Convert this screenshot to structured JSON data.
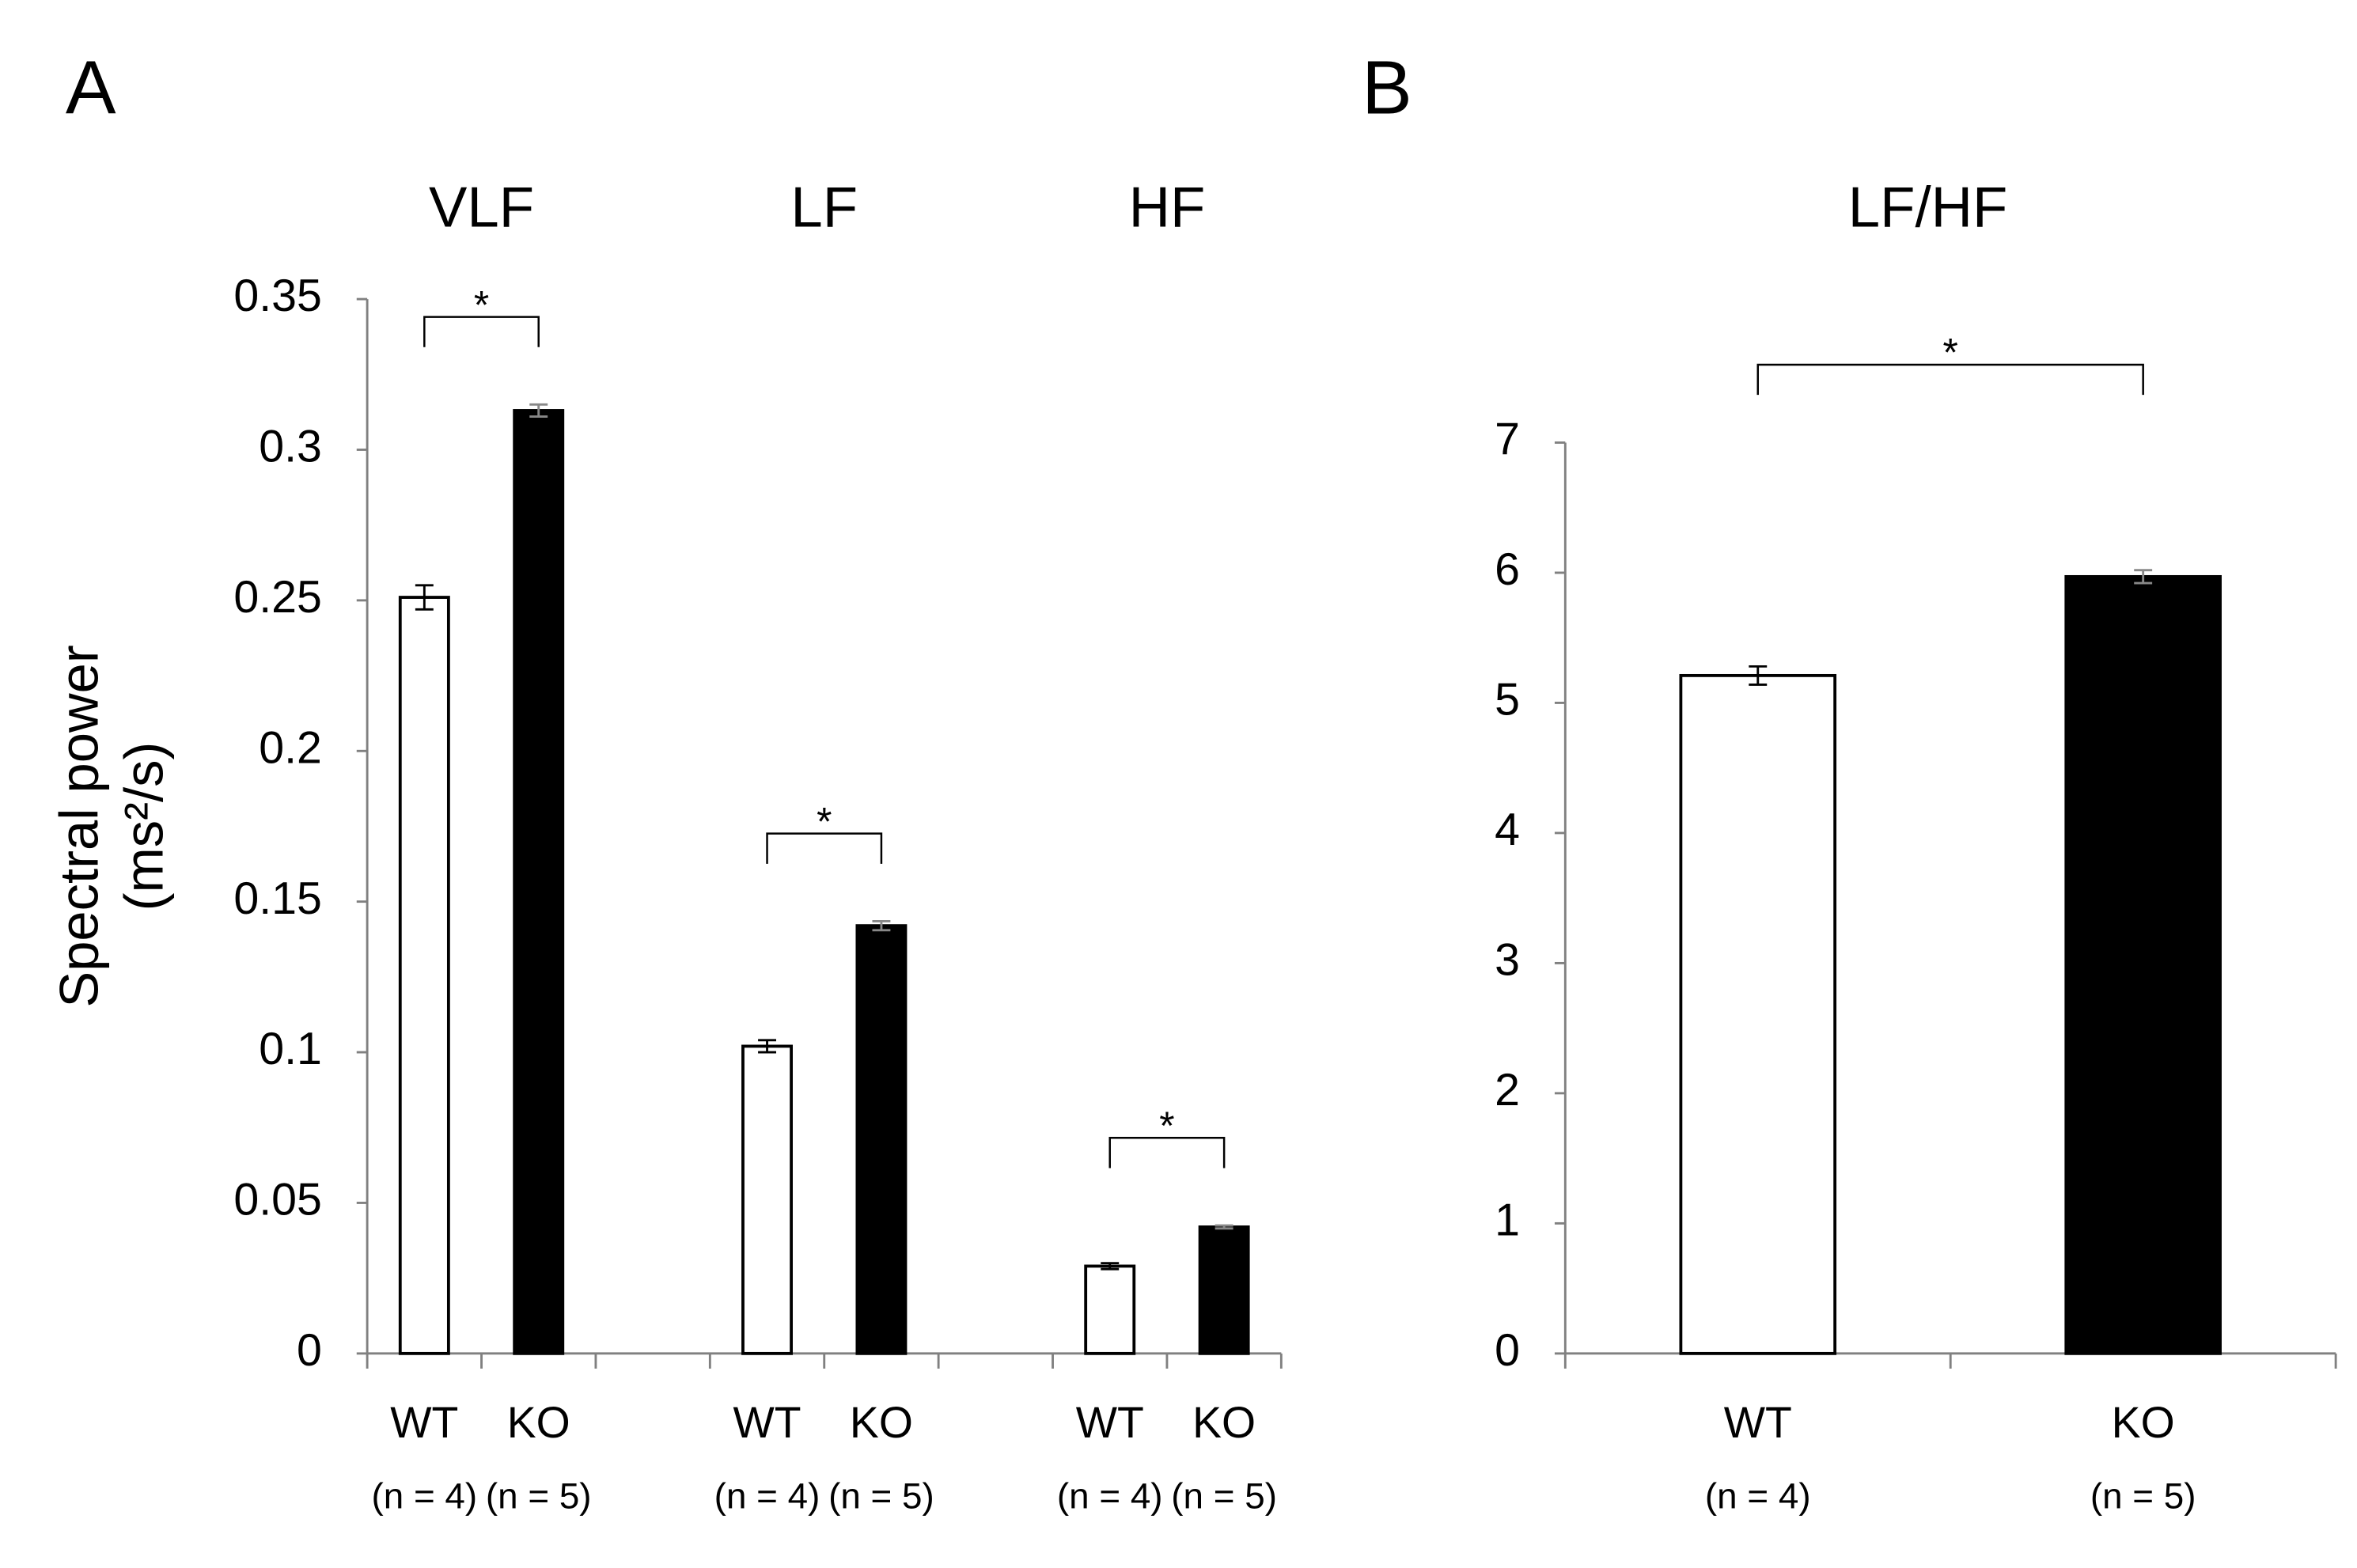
{
  "chart_data": [
    {
      "type": "bar",
      "panel": "A",
      "ylabel": "Spectral power",
      "ylabel_unit": "(ms²/s)",
      "categories": [
        "VLF",
        "LF",
        "HF"
      ],
      "series": [
        {
          "name": "WT",
          "sample_size": "(n = 4)",
          "color": "#ffffff",
          "values": [
            0.251,
            0.102,
            0.029
          ],
          "errors": [
            0.004,
            0.002,
            0.001
          ]
        },
        {
          "name": "KO",
          "sample_size": "(n = 5)",
          "color": "#000000",
          "values": [
            0.313,
            0.142,
            0.042
          ],
          "errors": [
            0.002,
            0.0015,
            0.0005
          ]
        }
      ],
      "significance": [
        "*",
        "*",
        "*"
      ],
      "ylim": [
        0,
        0.35
      ],
      "yticks": [
        0,
        0.05,
        0.1,
        0.15,
        0.2,
        0.25,
        0.3,
        0.35
      ]
    },
    {
      "type": "bar",
      "panel": "B",
      "title": "LF/HF",
      "categories": [
        "WT",
        "KO"
      ],
      "sample_sizes": [
        "(n = 4)",
        "(n = 5)"
      ],
      "values": [
        5.21,
        5.97
      ],
      "errors": [
        0.07,
        0.05
      ],
      "colors": [
        "#ffffff",
        "#000000"
      ],
      "significance": "*",
      "ylim": [
        0,
        7
      ],
      "yticks": [
        0,
        1,
        2,
        3,
        4,
        5,
        6,
        7
      ]
    }
  ]
}
